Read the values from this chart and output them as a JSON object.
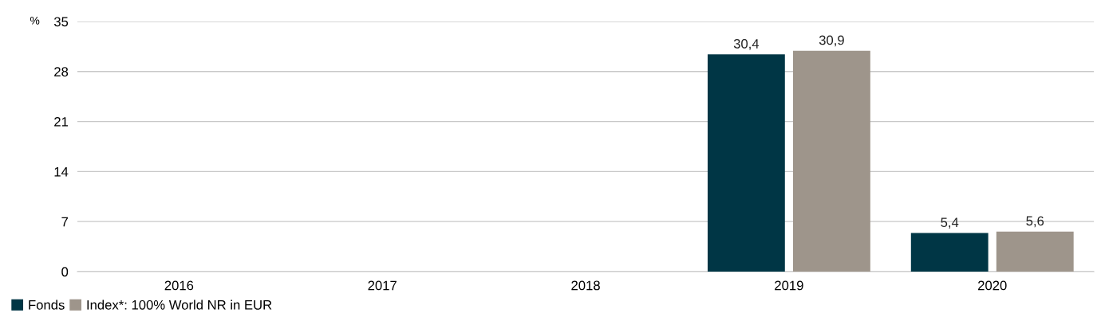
{
  "chart_data": {
    "type": "bar",
    "ylabel": "%",
    "categories": [
      "2016",
      "2017",
      "2018",
      "2019",
      "2020"
    ],
    "series": [
      {
        "name": "Fonds",
        "color": "#003645",
        "values": [
          null,
          null,
          null,
          30.4,
          5.4
        ],
        "value_labels": [
          null,
          null,
          null,
          "30,4",
          "5,4"
        ]
      },
      {
        "name": "Index*: 100% World NR in EUR",
        "color": "#9e958b",
        "values": [
          null,
          null,
          null,
          30.9,
          5.6
        ],
        "value_labels": [
          null,
          null,
          null,
          "30,9",
          "5,6"
        ]
      }
    ],
    "ylim": [
      0,
      35
    ],
    "yticks": [
      0,
      7,
      14,
      21,
      28,
      35
    ],
    "grid": "y",
    "legend": "bottom left"
  }
}
